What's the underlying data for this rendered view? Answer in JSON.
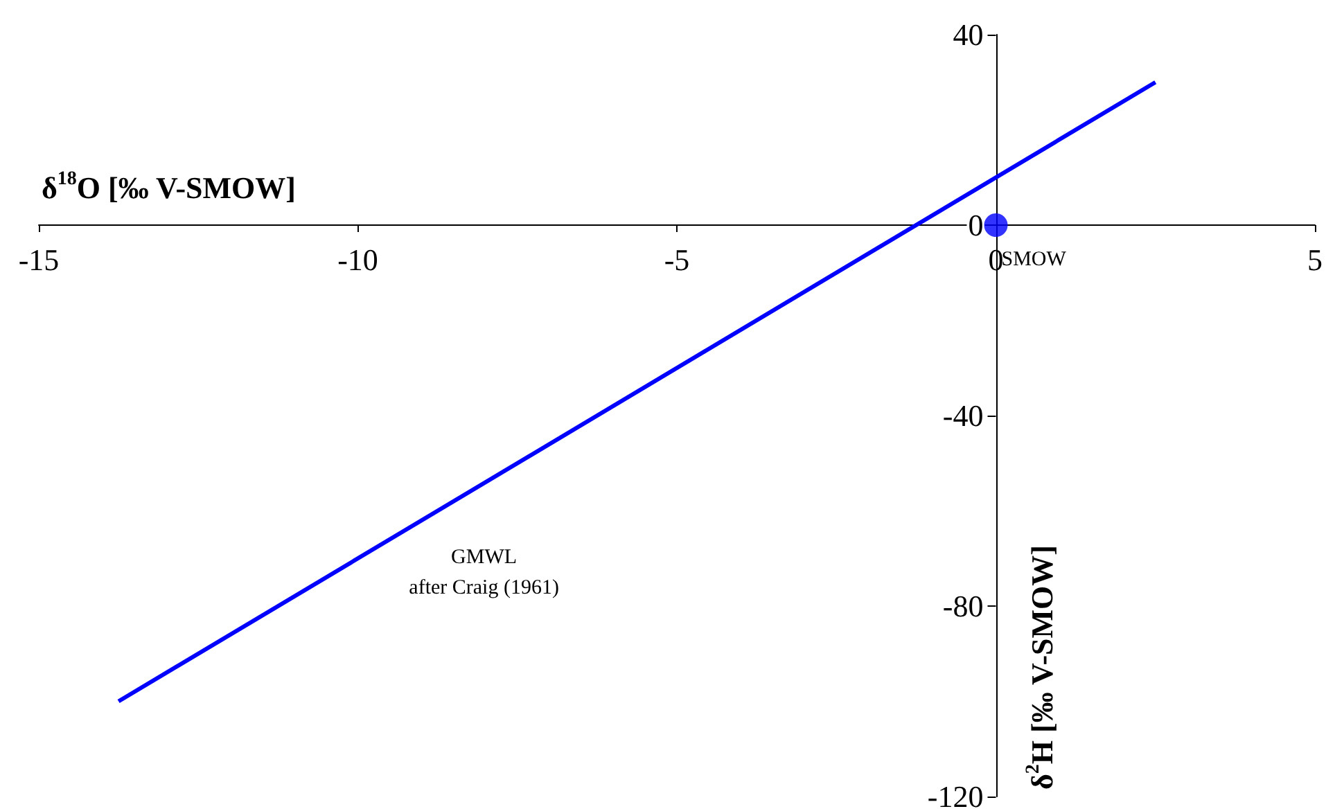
{
  "chart_data": {
    "type": "line",
    "xlabel": "δ$^{18}$O [‰ V-SMOW]",
    "ylabel": "δ$^{2}$H [‰ V-SMOW]",
    "series": [
      {
        "color": "#0000ff",
        "x": [
          -13.75,
          2.5
        ],
        "values": [
          -100,
          30
        ]
      },
      {
        "type": "scatter",
        "color": "#0000ff",
        "x": [
          0
        ],
        "values": [
          0
        ]
      }
    ],
    "annotations": [
      {
        "text": "SMOW",
        "x": 0,
        "y": 0
      },
      "GMWL\nafter Craig (1961)"
    ],
    "xlim": [
      -15,
      5
    ],
    "xticks": [
      -15,
      -10,
      -5,
      0,
      5
    ],
    "ylim": [
      -120,
      40
    ],
    "yticks": [
      -120,
      -80,
      -40,
      0,
      40
    ],
    "tick_labels": true
  }
}
